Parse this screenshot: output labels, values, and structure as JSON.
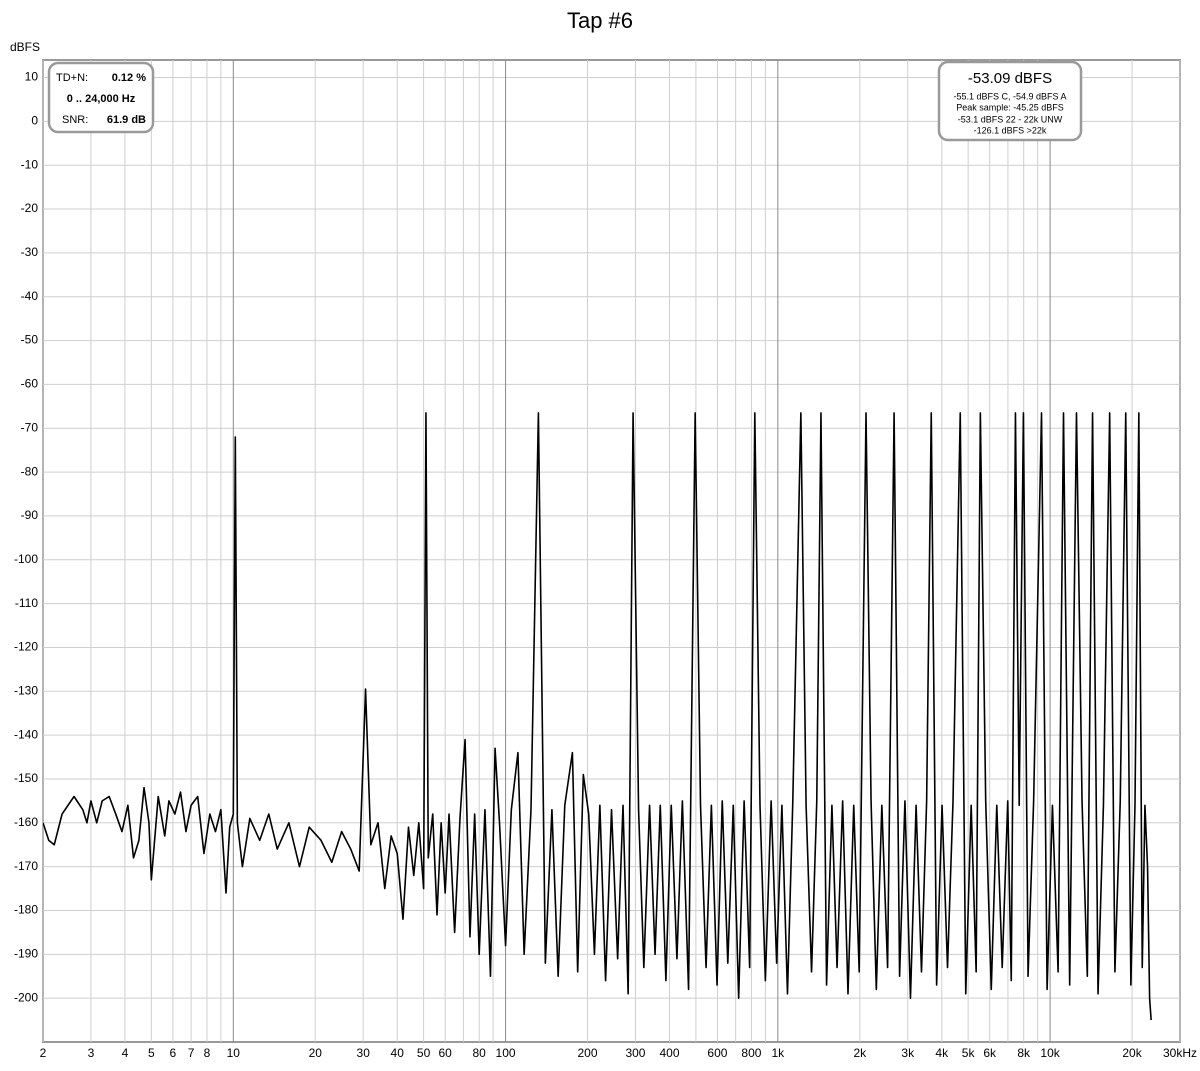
{
  "chart_data": {
    "type": "line",
    "title": "Tap #6",
    "y_label": "dBFS",
    "log_x": true,
    "grid": true,
    "xlim": [
      2,
      30000
    ],
    "ylim": [
      -210,
      14
    ],
    "xticks": [
      2,
      3,
      4,
      5,
      6,
      7,
      8,
      10,
      20,
      30,
      40,
      50,
      60,
      80,
      100,
      200,
      300,
      400,
      600,
      800,
      {
        "value": 1000,
        "label": "1k"
      },
      {
        "value": 2000,
        "label": "2k"
      },
      {
        "value": 3000,
        "label": "3k"
      },
      {
        "value": 4000,
        "label": "4k"
      },
      {
        "value": 5000,
        "label": "5k"
      },
      {
        "value": 6000,
        "label": "6k"
      },
      {
        "value": 8000,
        "label": "8k"
      },
      {
        "value": 10000,
        "label": "10k"
      },
      {
        "value": 20000,
        "label": "20k"
      },
      {
        "value": 30000,
        "label": "30kHz"
      }
    ],
    "xminorticks": [
      9,
      70,
      90,
      500,
      700,
      900,
      7000,
      9000
    ],
    "yticks": [
      10,
      0,
      -10,
      -20,
      -30,
      -40,
      -50,
      -60,
      -70,
      -80,
      -90,
      -100,
      -110,
      -120,
      -130,
      -140,
      -150,
      -160,
      -170,
      -180,
      -190,
      -200
    ],
    "info_left": {
      "td_n_label": "TD+N:",
      "td_n": "0.12 %",
      "range": "0 .. 24,000 Hz",
      "snr_label": "SNR:",
      "snr": "61.9 dB"
    },
    "info_right": {
      "main": "-53.09 dBFS",
      "lines": [
        "-55.1 dBFS C, -54.9 dBFS A",
        "Peak sample: -45.25 dBFS",
        "-53.1 dBFS 22 - 22k UNW",
        "-126.1 dBFS >22k"
      ]
    },
    "x": [
      2,
      2.1,
      2.2,
      2.35,
      2.6,
      2.8,
      2.9,
      3.0,
      3.15,
      3.3,
      3.5,
      3.7,
      3.9,
      4.1,
      4.3,
      4.5,
      4.7,
      4.9,
      5.0,
      5.3,
      5.6,
      5.8,
      6.1,
      6.4,
      6.7,
      7.0,
      7.4,
      7.8,
      8.2,
      8.6,
      9.0,
      9.4,
      9.7,
      10.0,
      10.17,
      10.35,
      10.8,
      11.5,
      12.5,
      13.5,
      14.5,
      16,
      17.5,
      19,
      21,
      23,
      25,
      27,
      29,
      30.6,
      32,
      34,
      36,
      38,
      40,
      42,
      44,
      46,
      48,
      50,
      51,
      52,
      54,
      56,
      58,
      60,
      62,
      65,
      68,
      71,
      74,
      77,
      80,
      84,
      88,
      91.5,
      95,
      100,
      105,
      111,
      117,
      124,
      132,
      140,
      148,
      156,
      165,
      176,
      184,
      193,
      202,
      212,
      222,
      233,
      245,
      258,
      270,
      282,
      294,
      308,
      322,
      338,
      354,
      370,
      388,
      406,
      426,
      446,
      470,
      497,
      520,
      545,
      570,
      598,
      625,
      655,
      686,
      718,
      752,
      788,
      823,
      860,
      900,
      945,
      990,
      1035,
      1085,
      1135,
      1215,
      1270,
      1330,
      1390,
      1440,
      1510,
      1580,
      1650,
      1730,
      1810,
      1900,
      1990,
      2108,
      2200,
      2300,
      2410,
      2530,
      2673,
      2800,
      2930,
      3070,
      3220,
      3370,
      3520,
      3660,
      3830,
      4010,
      4200,
      4400,
      4677,
      4900,
      5130,
      5350,
      5544,
      5800,
      6080,
      6370,
      6670,
      6990,
      7200,
      7460,
      7700,
      7980,
      8300,
      8700,
      9300,
      9750,
      10200,
      10700,
      11200,
      11800,
      12500,
      13100,
      13700,
      14320,
      15000,
      15700,
      16550,
      17300,
      18100,
      18960,
      19800,
      20500,
      21180,
      21800,
      22300,
      22800,
      23200,
      23500
    ],
    "series": [
      {
        "color": "#000000",
        "values": [
          -160,
          -164,
          -165,
          -158,
          -154,
          -157,
          -160,
          -155,
          -160,
          -155,
          -154,
          -158,
          -162,
          -156,
          -168,
          -164,
          -152,
          -160,
          -173,
          -154,
          -163,
          -155,
          -158,
          -153,
          -162,
          -156,
          -154,
          -167,
          -158,
          -162,
          -157,
          -176,
          -161,
          -158,
          -72,
          -160,
          -170,
          -159,
          -164,
          -158,
          -166,
          -160,
          -170,
          -161,
          -164,
          -169,
          -162,
          -166,
          -171,
          -129.5,
          -165,
          -160,
          -175,
          -163,
          -167,
          -182,
          -161,
          -172,
          -160,
          -175,
          -66.5,
          -168,
          -158,
          -181,
          -160,
          -176,
          -158,
          -185,
          -159,
          -141,
          -186,
          -158,
          -190,
          -157,
          -195,
          -143,
          -160,
          -188,
          -157,
          -144,
          -190,
          -157,
          -66.5,
          -192,
          -157,
          -195,
          -156,
          -144,
          -194,
          -149,
          -158,
          -190,
          -156,
          -196,
          -157,
          -191,
          -156,
          -199,
          -66.5,
          -157,
          -193,
          -156,
          -190,
          -156,
          -196,
          -156,
          -191,
          -155,
          -198,
          -66.5,
          -156,
          -193,
          -156,
          -197,
          -155,
          -192,
          -156,
          -200,
          -155,
          -193,
          -66.5,
          -156,
          -196,
          -155,
          -192,
          -156,
          -199,
          -155,
          -66.5,
          -156,
          -194,
          -155,
          -66.5,
          -197,
          -156,
          -193,
          -155,
          -199,
          -156,
          -194,
          -66.5,
          -155,
          -198,
          -156,
          -193,
          -66.5,
          -195,
          -155,
          -200,
          -156,
          -194,
          -155,
          -66.5,
          -197,
          -156,
          -193,
          -155,
          -66.5,
          -199,
          -156,
          -194,
          -66.5,
          -155,
          -198,
          -156,
          -193,
          -155,
          -196,
          -66.5,
          -156,
          -66.5,
          -195,
          -155,
          -66.5,
          -198,
          -156,
          -194,
          -66.5,
          -197,
          -66.5,
          -155,
          -195,
          -66.5,
          -199,
          -156,
          -66.5,
          -194,
          -155,
          -66.5,
          -197,
          -156,
          -66.5,
          -193,
          -156,
          -170,
          -200,
          -205
        ]
      }
    ]
  }
}
